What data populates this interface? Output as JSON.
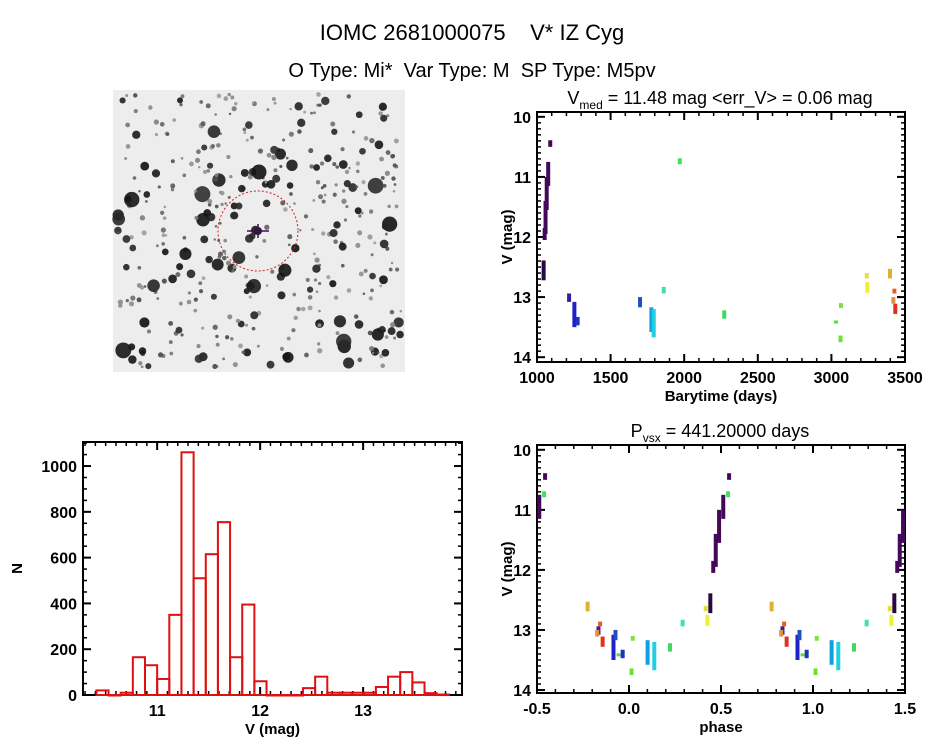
{
  "header": {
    "title": "IOMC 2681000075    V* IZ Cyg",
    "subtitle": "O Type: Mi*  Var Type: M  SP Type: M5pv"
  },
  "chart_data": [
    {
      "id": "histogram",
      "type": "bar",
      "title": "",
      "xlabel": "V (mag)",
      "ylabel": "N",
      "xlim": [
        10.28,
        13.96
      ],
      "ylim": [
        0,
        1105
      ],
      "xticks": [
        11,
        12,
        13
      ],
      "yticks": [
        0,
        200,
        400,
        600,
        800,
        1000
      ],
      "bin_start": 10.41,
      "bin_width": 0.118,
      "values": [
        20,
        0,
        10,
        165,
        130,
        70,
        350,
        1060,
        510,
        615,
        755,
        165,
        395,
        60,
        0,
        0,
        0,
        30,
        80,
        10,
        10,
        10,
        10,
        35,
        80,
        100,
        55,
        8,
        2
      ],
      "color": "#dd1111"
    },
    {
      "id": "light-curve",
      "type": "scatter",
      "title_main": "V",
      "title_sub": "med",
      "title_rest": " = 11.48 mag <err_V> = 0.06 mag",
      "xlabel": "Barytime (days)",
      "ylabel": "V (mag)",
      "xlim": [
        1000,
        3500
      ],
      "ylim": [
        9.92,
        14.08
      ],
      "y_inverted": true,
      "xticks": [
        1000,
        1500,
        2000,
        2500,
        3000,
        3500
      ],
      "yticks": [
        10,
        11,
        12,
        13,
        14
      ],
      "points": [
        {
          "t": 1045,
          "v": [
            12.39,
            12.72
          ],
          "color": "#2a0840"
        },
        {
          "t": 1052,
          "v": [
            11.85,
            12.05
          ],
          "color": "#44085a"
        },
        {
          "t": 1058,
          "v": [
            11.4,
            11.95
          ],
          "color": "#44085a"
        },
        {
          "t": 1066,
          "v": [
            11.0,
            11.55
          ],
          "color": "#44085a"
        },
        {
          "t": 1076,
          "v": [
            10.75,
            11.15
          ],
          "color": "#44085a"
        },
        {
          "t": 1090,
          "v": [
            10.39,
            10.5
          ],
          "color": "#44085a"
        },
        {
          "t": 1218,
          "v": [
            12.94,
            13.08
          ],
          "color": "#3a1aa0"
        },
        {
          "t": 1254,
          "v": [
            13.08,
            13.5
          ],
          "color": "#2020c8"
        },
        {
          "t": 1276,
          "v": [
            13.33,
            13.47
          ],
          "color": "#2030c0"
        },
        {
          "t": 1700,
          "v": [
            13.0,
            13.17
          ],
          "color": "#2050c0"
        },
        {
          "t": 1777,
          "v": [
            13.17,
            13.58
          ],
          "color": "#10a0e0"
        },
        {
          "t": 1793,
          "v": [
            13.2,
            13.67
          ],
          "color": "#20d0e0"
        },
        {
          "t": 1861,
          "v": [
            12.83,
            12.94
          ],
          "color": "#40e0b0"
        },
        {
          "t": 1970,
          "v": [
            10.69,
            10.79
          ],
          "color": "#40e060"
        },
        {
          "t": 2272,
          "v": [
            13.22,
            13.36
          ],
          "color": "#40d860"
        },
        {
          "t": 3031,
          "v": [
            13.39,
            13.44
          ],
          "color": "#50e040"
        },
        {
          "t": 3065,
          "v": [
            13.1,
            13.18
          ],
          "color": "#80e040"
        },
        {
          "t": 3062,
          "v": [
            13.64,
            13.75
          ],
          "color": "#70e030"
        },
        {
          "t": 3240,
          "v": [
            12.6,
            12.69
          ],
          "color": "#e0e040"
        },
        {
          "t": 3244,
          "v": [
            12.75,
            12.93
          ],
          "color": "#f0f030"
        },
        {
          "t": 3398,
          "v": [
            12.53,
            12.69
          ],
          "color": "#e0b030"
        },
        {
          "t": 3428,
          "v": [
            12.86,
            12.94
          ],
          "color": "#e06020"
        },
        {
          "t": 3421,
          "v": [
            13.0,
            13.11
          ],
          "color": "#e09040"
        },
        {
          "t": 3434,
          "v": [
            13.11,
            13.28
          ],
          "color": "#e03020"
        }
      ]
    },
    {
      "id": "phase-curve",
      "type": "scatter",
      "title_main": "P",
      "title_sub": "vsx",
      "title_rest": " = 441.20000 days",
      "period": 441.2,
      "epoch": 850,
      "xlabel": "phase",
      "ylabel": "V (mag)",
      "xlim": [
        -0.5,
        1.5
      ],
      "ylim": [
        9.92,
        14.05
      ],
      "y_inverted": true,
      "xticks": [
        -0.5,
        0.0,
        0.5,
        1.0,
        1.5
      ],
      "xtick_labels": [
        "-0.5",
        "0.0",
        "0.5",
        "1.0",
        "1.5"
      ],
      "yticks": [
        10,
        11,
        12,
        13,
        14
      ]
    }
  ],
  "sky_image": {
    "marker_color": "#cc2222",
    "crosshair_color": "#440a5a"
  }
}
